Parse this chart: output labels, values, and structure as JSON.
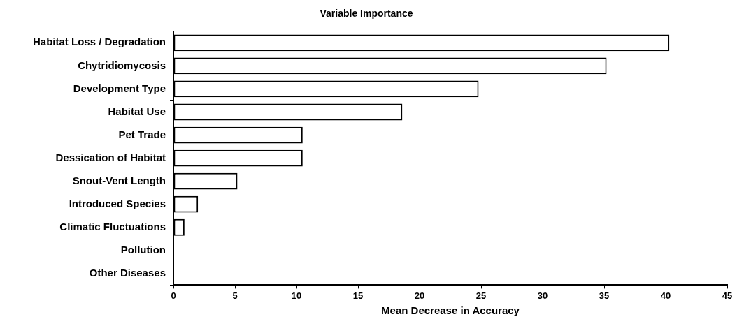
{
  "chart_data": {
    "type": "bar",
    "orientation": "horizontal",
    "title": "Variable Importance",
    "xlabel": "Mean Decrease in Accuracy",
    "categories": [
      "Habitat Loss / Degradation",
      "Chytridiomycosis",
      "Development Type",
      "Habitat Use",
      "Pet Trade",
      "Dessication of Habitat",
      "Snout-Vent Length",
      "Introduced Species",
      "Climatic Fluctuations",
      "Pollution",
      "Other Diseases"
    ],
    "values": [
      40.3,
      35.2,
      24.8,
      18.6,
      10.5,
      10.5,
      5.2,
      2.0,
      0.9,
      0,
      0
    ],
    "color": "#ffffff",
    "xlim": [
      0,
      45
    ],
    "xticks": [
      0,
      5,
      10,
      15,
      20,
      25,
      30,
      35,
      40,
      45
    ],
    "grid": false,
    "legend": false
  }
}
